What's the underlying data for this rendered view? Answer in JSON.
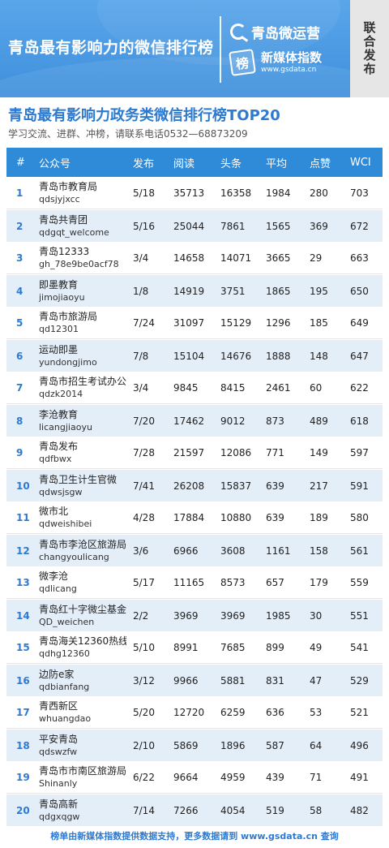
{
  "banner": {
    "title": "青岛最有影响力的微信排行榜",
    "brand_primary": "青岛微运营",
    "brand_secondary": "新媒体指数",
    "brand_url": "www.gsdata.cn",
    "brand_logo_glyph": "榜",
    "side_tag": "联合发布"
  },
  "heading": "青岛最有影响力政务类微信排行榜TOP20",
  "subheading": "学习交流、进群、冲榜，请联系电话0532—68873209",
  "columns": [
    "#",
    "公众号",
    "发布",
    "阅读",
    "头条",
    "平均",
    "点赞",
    "WCI"
  ],
  "rows": [
    {
      "rank": "1",
      "name": "青岛市教育局",
      "id": "qdsjyjxcc",
      "post": "5/18",
      "read": "35713",
      "head": "16358",
      "avg": "1984",
      "like": "280",
      "wci": "703"
    },
    {
      "rank": "2",
      "name": "青岛共青团",
      "id": "qdgqt_welcome",
      "post": "5/16",
      "read": "25044",
      "head": "7861",
      "avg": "1565",
      "like": "369",
      "wci": "672"
    },
    {
      "rank": "3",
      "name": "青岛12333",
      "id": "gh_78e9be0acf78",
      "post": "3/4",
      "read": "14658",
      "head": "14071",
      "avg": "3665",
      "like": "29",
      "wci": "663"
    },
    {
      "rank": "4",
      "name": "即墨教育",
      "id": "jimojiaoyu",
      "post": "1/8",
      "read": "14919",
      "head": "3751",
      "avg": "1865",
      "like": "195",
      "wci": "650"
    },
    {
      "rank": "5",
      "name": "青岛市旅游局",
      "id": "qd12301",
      "post": "7/24",
      "read": "31097",
      "head": "15129",
      "avg": "1296",
      "like": "185",
      "wci": "649"
    },
    {
      "rank": "6",
      "name": "运动即墨",
      "id": "yundongjimo",
      "post": "7/8",
      "read": "15104",
      "head": "14676",
      "avg": "1888",
      "like": "148",
      "wci": "647"
    },
    {
      "rank": "7",
      "name": "青岛市招生考试办公室",
      "id": "qdzk2014",
      "post": "3/4",
      "read": "9845",
      "head": "8415",
      "avg": "2461",
      "like": "60",
      "wci": "622"
    },
    {
      "rank": "8",
      "name": "李沧教育",
      "id": "licangjiaoyu",
      "post": "7/20",
      "read": "17462",
      "head": "9012",
      "avg": "873",
      "like": "489",
      "wci": "618"
    },
    {
      "rank": "9",
      "name": "青岛发布",
      "id": "qdfbwx",
      "post": "7/28",
      "read": "21597",
      "head": "12086",
      "avg": "771",
      "like": "149",
      "wci": "597"
    },
    {
      "rank": "10",
      "name": "青岛卫生计生官微",
      "id": "qdwsjsgw",
      "post": "7/41",
      "read": "26208",
      "head": "15837",
      "avg": "639",
      "like": "217",
      "wci": "591"
    },
    {
      "rank": "11",
      "name": "微市北",
      "id": "qdweishibei",
      "post": "4/28",
      "read": "17884",
      "head": "10880",
      "avg": "639",
      "like": "189",
      "wci": "580"
    },
    {
      "rank": "12",
      "name": "青岛市李沧区旅游局",
      "id": "changyoulicang",
      "post": "3/6",
      "read": "6966",
      "head": "3608",
      "avg": "1161",
      "like": "158",
      "wci": "561"
    },
    {
      "rank": "13",
      "name": "微李沧",
      "id": "qdlicang",
      "post": "5/17",
      "read": "11165",
      "head": "8573",
      "avg": "657",
      "like": "179",
      "wci": "559"
    },
    {
      "rank": "14",
      "name": "青岛红十字微尘基金",
      "id": "QD_weichen",
      "post": "2/2",
      "read": "3969",
      "head": "3969",
      "avg": "1985",
      "like": "30",
      "wci": "551"
    },
    {
      "rank": "15",
      "name": "青岛海关12360热线",
      "id": "qdhg12360",
      "post": "5/10",
      "read": "8991",
      "head": "7685",
      "avg": "899",
      "like": "49",
      "wci": "541"
    },
    {
      "rank": "16",
      "name": "边防e家",
      "id": "qdbianfang",
      "post": "3/12",
      "read": "9966",
      "head": "5881",
      "avg": "831",
      "like": "47",
      "wci": "529"
    },
    {
      "rank": "17",
      "name": "青西新区",
      "id": "whuangdao",
      "post": "5/20",
      "read": "12720",
      "head": "6259",
      "avg": "636",
      "like": "53",
      "wci": "521"
    },
    {
      "rank": "18",
      "name": "平安青岛",
      "id": "qdswzfw",
      "post": "2/10",
      "read": "5869",
      "head": "1896",
      "avg": "587",
      "like": "64",
      "wci": "496"
    },
    {
      "rank": "19",
      "name": "青岛市市南区旅游局",
      "id": "Shinanly",
      "post": "6/22",
      "read": "9664",
      "head": "4959",
      "avg": "439",
      "like": "71",
      "wci": "491"
    },
    {
      "rank": "20",
      "name": "青岛高新",
      "id": "qdgxqgw",
      "post": "7/14",
      "read": "7266",
      "head": "4054",
      "avg": "519",
      "like": "58",
      "wci": "482"
    }
  ],
  "footer": "榜单由新媒体指数提供数据支持，更多数据请到 www.gsdata.cn 查询",
  "colors": {
    "banner_blue": "#3e8fdc",
    "header_blue": "#2f8ad8",
    "accent_blue": "#2d7ad1",
    "row_alt": "#e4eef9"
  }
}
